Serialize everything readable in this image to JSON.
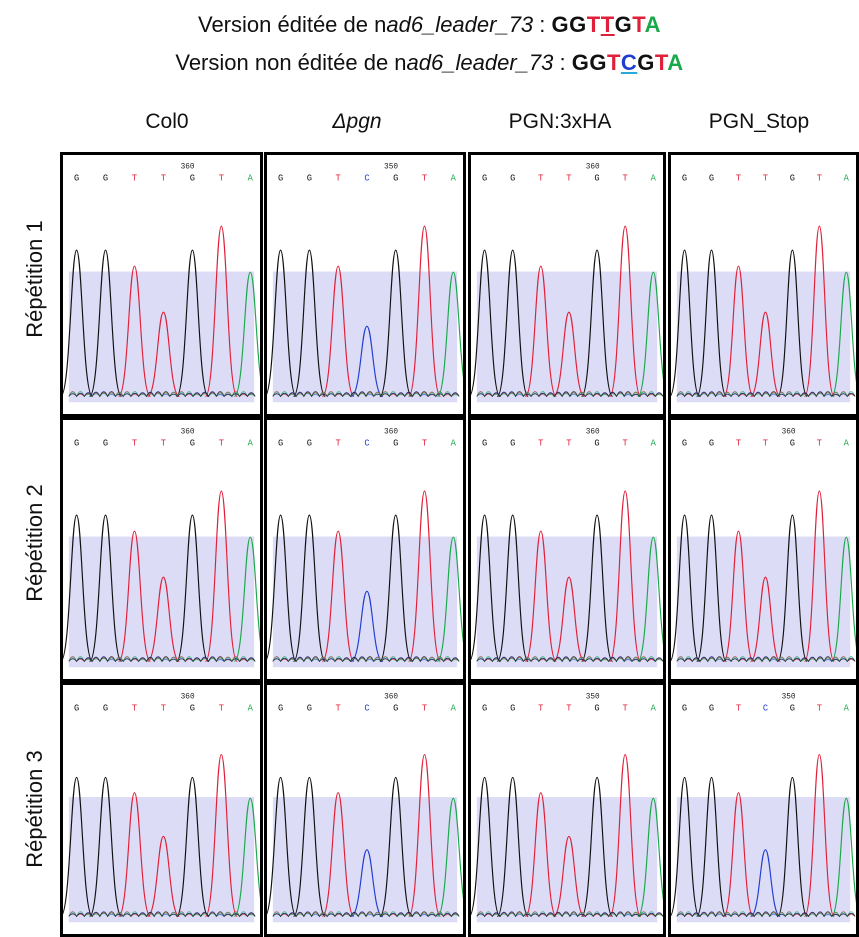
{
  "colors": {
    "A": "#1aa84a",
    "C": "#1f3fd0",
    "G": "#111111",
    "T": "#e0203a",
    "underline_T": "#e0203a",
    "underline_C": "#2aa8d8",
    "bg": "#dcdcf6"
  },
  "header": {
    "edited_prefix": "Version éditée de n",
    "edited_name": "ad6_leader_73",
    "edited_sep": " : ",
    "edited_seq": [
      "G",
      "G",
      "T",
      "T",
      "G",
      "T",
      "A"
    ],
    "unedited_prefix": "Version non éditée de n",
    "unedited_name": "ad6_leader_73",
    "unedited_sep": " : ",
    "unedited_seq": [
      "G",
      "G",
      "T",
      "C",
      "G",
      "T",
      "A"
    ]
  },
  "columns": [
    "Col0",
    "Δpgn",
    "PGN:3xHA",
    "PGN_Stop"
  ],
  "rows": [
    "Répétition 1",
    "Répétition 2",
    "Répétition 3"
  ],
  "panels": [
    [
      {
        "pos": "360",
        "bases": "GGTTGTA"
      },
      {
        "pos": "350",
        "bases": "GGTCGTA"
      },
      {
        "pos": "360",
        "bases": "GGTTGTA"
      },
      {
        "pos": "",
        "bases": "GGTTGTA"
      }
    ],
    [
      {
        "pos": "360",
        "bases": "GGTTGTA"
      },
      {
        "pos": "360",
        "bases": "GGTCGTA"
      },
      {
        "pos": "360",
        "bases": "GGTTGTA"
      },
      {
        "pos": "360",
        "bases": "GGTTGTA"
      }
    ],
    [
      {
        "pos": "360",
        "bases": "GGTTGTA"
      },
      {
        "pos": "360",
        "bases": "GGTCGTA"
      },
      {
        "pos": "350",
        "bases": "GGTTGTA"
      },
      {
        "pos": "350",
        "bases": "GGTCGTA"
      }
    ]
  ]
}
